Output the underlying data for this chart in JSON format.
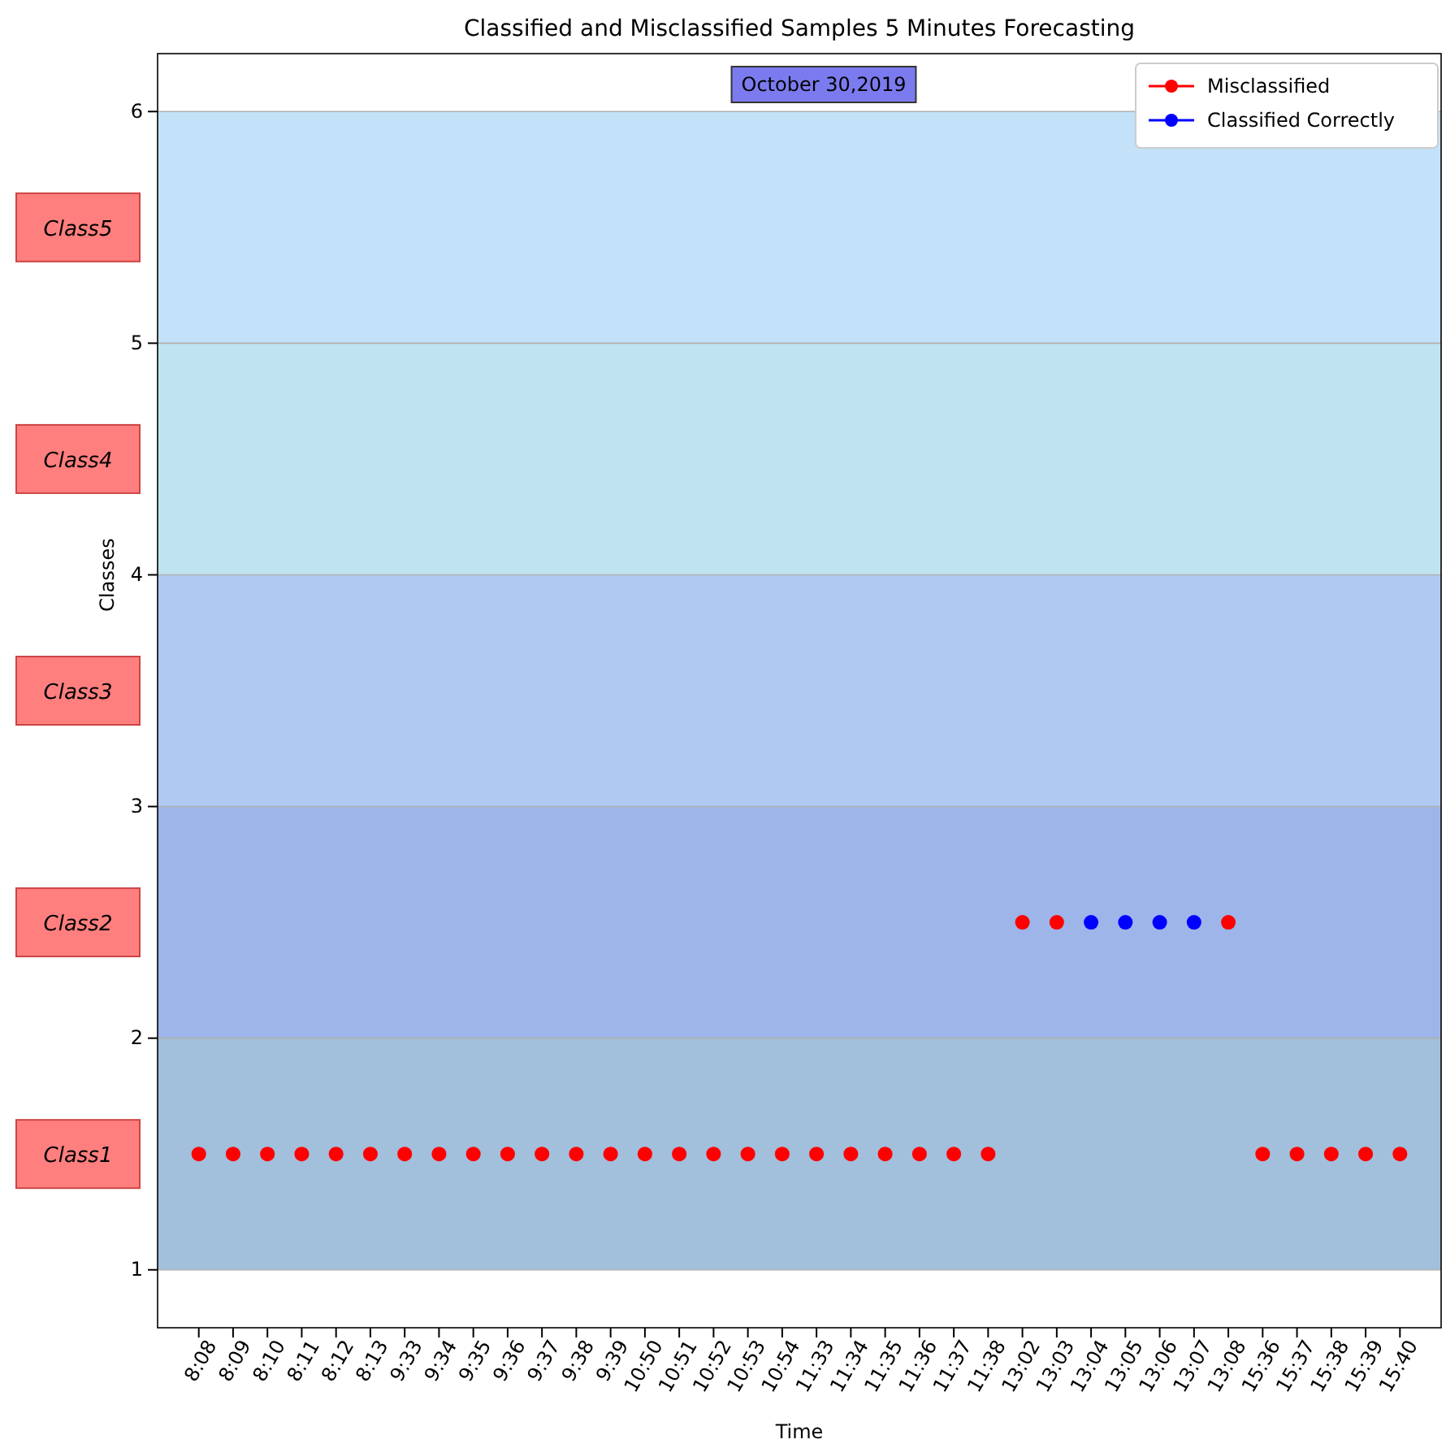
{
  "chart_data": {
    "type": "scatter",
    "title": "Classified and Misclassified Samples 5 Minutes Forecasting",
    "xlabel": "Time",
    "ylabel": "Classes",
    "categories": [
      "8:08",
      "8:09",
      "8:10",
      "8:11",
      "8:12",
      "8:13",
      "9:33",
      "9:34",
      "9:35",
      "9:36",
      "9:37",
      "9:38",
      "9:39",
      "10:50",
      "10:51",
      "10:52",
      "10:53",
      "10:54",
      "11:33",
      "11:34",
      "11:35",
      "11:36",
      "11:37",
      "11:38",
      "13:02",
      "13:03",
      "13:04",
      "13:05",
      "13:06",
      "13:07",
      "13:08",
      "15:36",
      "15:37",
      "15:38",
      "15:39",
      "15:40"
    ],
    "series": [
      {
        "name": "Misclassified",
        "color": "#ff0000",
        "values": [
          1.5,
          1.5,
          1.5,
          1.5,
          1.5,
          1.5,
          1.5,
          1.5,
          1.5,
          1.5,
          1.5,
          1.5,
          1.5,
          1.5,
          1.5,
          1.5,
          1.5,
          1.5,
          1.5,
          1.5,
          1.5,
          1.5,
          1.5,
          1.5,
          2.5,
          2.5,
          null,
          null,
          null,
          null,
          2.5,
          1.5,
          1.5,
          1.5,
          1.5,
          1.5
        ]
      },
      {
        "name": "Classified Correctly",
        "color": "#0000ff",
        "values": [
          null,
          null,
          null,
          null,
          null,
          null,
          null,
          null,
          null,
          null,
          null,
          null,
          null,
          null,
          null,
          null,
          null,
          null,
          null,
          null,
          null,
          null,
          null,
          null,
          null,
          null,
          2.5,
          2.5,
          2.5,
          2.5,
          null,
          null,
          null,
          null,
          null,
          null
        ]
      }
    ],
    "ylim": [
      0.75,
      6.25
    ],
    "yticks": [
      1,
      2,
      3,
      4,
      5,
      6
    ],
    "grid": "y",
    "marker": "circle",
    "legend": "top right",
    "bands": [
      {
        "axis": "y",
        "from": 1,
        "to": 2,
        "label": "Class1",
        "color": "#a2bfdb"
      },
      {
        "axis": "y",
        "from": 2,
        "to": 3,
        "label": "Class2",
        "color": "#9eb5ea"
      },
      {
        "axis": "y",
        "from": 3,
        "to": 4,
        "label": "Class3",
        "color": "#b0c9f3"
      },
      {
        "axis": "y",
        "from": 4,
        "to": 5,
        "label": "Class4",
        "color": "#c0e3f0"
      },
      {
        "axis": "y",
        "from": 5,
        "to": 6,
        "label": "Class5",
        "color": "#c3e2f9"
      }
    ],
    "annotations": [
      "October 30,2019"
    ]
  }
}
